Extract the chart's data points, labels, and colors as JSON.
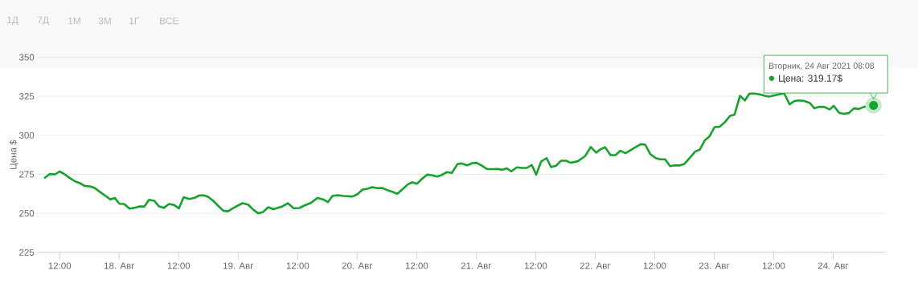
{
  "chart_data": {
    "type": "line",
    "ylabel": "Цена $",
    "xlim": [
      "2021-08-17T07:28",
      "2021-08-24T10:30"
    ],
    "ylim": [
      225,
      350
    ],
    "yticks": [
      225,
      250,
      275,
      300,
      325,
      350
    ],
    "xticks": [
      {
        "value": "2021-08-17T12:00",
        "label": "12:00"
      },
      {
        "value": "2021-08-18",
        "label": "18. Авг"
      },
      {
        "value": "2021-08-18T12:00",
        "label": "12:00"
      },
      {
        "value": "2021-08-19",
        "label": "19. Авг"
      },
      {
        "value": "2021-08-19T12:00",
        "label": "12:00"
      },
      {
        "value": "2021-08-20",
        "label": "20. Авг"
      },
      {
        "value": "2021-08-20T12:00",
        "label": "12:00"
      },
      {
        "value": "2021-08-21",
        "label": "21. Авг"
      },
      {
        "value": "2021-08-21T12:00",
        "label": "12:00"
      },
      {
        "value": "2021-08-22",
        "label": "22. Авг"
      },
      {
        "value": "2021-08-22T12:00",
        "label": "12:00"
      },
      {
        "value": "2021-08-23",
        "label": "23. Авг"
      },
      {
        "value": "2021-08-23T12:00",
        "label": "12:00"
      },
      {
        "value": "2021-08-24",
        "label": "24. Авг"
      }
    ],
    "grid": "y",
    "marker": "none",
    "line_style": "solid",
    "annotations": [
      "1Д",
      "7Д",
      "1М",
      "3М",
      "1Г",
      "ВСЕ",
      "Вторник, 24 Авг 2021 08:08",
      "Цена: 319.17$"
    ],
    "series": [
      {
        "color": "#17a22b",
        "x": [
          "2021-08-17T09:02",
          "2021-08-17T10:00",
          "2021-08-17T11:06",
          "2021-08-17T12:00",
          "2021-08-17T13:00",
          "2021-08-17T14:03",
          "2021-08-17T15:06",
          "2021-08-17T16:12",
          "2021-08-17T17:00",
          "2021-08-17T18:06",
          "2021-08-17T19:00",
          "2021-08-17T20:00",
          "2021-08-17T21:06",
          "2021-08-17T22:12",
          "2021-08-17T23:06",
          "2021-08-18T00:03",
          "2021-08-18T01:00",
          "2021-08-18T02:06",
          "2021-08-18T03:18",
          "2021-08-18T04:06",
          "2021-08-18T05:06",
          "2021-08-18T06:00",
          "2021-08-18T07:06",
          "2021-08-18T08:03",
          "2021-08-18T09:00",
          "2021-08-18T10:03",
          "2021-08-18T11:06",
          "2021-08-18T12:03",
          "2021-08-18T13:00",
          "2021-08-18T14:06",
          "2021-08-18T15:06",
          "2021-08-18T16:12",
          "2021-08-18T17:06",
          "2021-08-18T18:00",
          "2021-08-18T19:00",
          "2021-08-18T20:03",
          "2021-08-18T21:00",
          "2021-08-18T21:57",
          "2021-08-18T23:00",
          "2021-08-19T00:00",
          "2021-08-19T00:54",
          "2021-08-19T02:00",
          "2021-08-19T03:06",
          "2021-08-19T04:03",
          "2021-08-19T05:00",
          "2021-08-19T06:03",
          "2021-08-19T07:06",
          "2021-08-19T08:48",
          "2021-08-19T10:00",
          "2021-08-19T11:12",
          "2021-08-19T12:18",
          "2021-08-19T13:24",
          "2021-08-19T14:42",
          "2021-08-19T16:00",
          "2021-08-19T17:06",
          "2021-08-19T18:06",
          "2021-08-19T19:00",
          "2021-08-19T20:06",
          "2021-08-19T21:12",
          "2021-08-19T23:06",
          "2021-08-20T00:03",
          "2021-08-20T01:06",
          "2021-08-20T02:06",
          "2021-08-20T03:00",
          "2021-08-20T04:06",
          "2021-08-20T05:00",
          "2021-08-20T06:06",
          "2021-08-20T07:12",
          "2021-08-20T08:06",
          "2021-08-20T09:18",
          "2021-08-20T10:12",
          "2021-08-20T11:06",
          "2021-08-20T12:06",
          "2021-08-20T13:00",
          "2021-08-20T14:06",
          "2021-08-20T15:00",
          "2021-08-20T16:06",
          "2021-08-20T17:00",
          "2021-08-20T18:06",
          "2021-08-20T19:06",
          "2021-08-20T20:12",
          "2021-08-20T21:06",
          "2021-08-20T22:12",
          "2021-08-20T23:15",
          "2021-08-21T00:06",
          "2021-08-21T01:00",
          "2021-08-21T02:12",
          "2021-08-21T03:12",
          "2021-08-21T04:18",
          "2021-08-21T05:18",
          "2021-08-21T06:12",
          "2021-08-21T07:06",
          "2021-08-21T08:12",
          "2021-08-21T09:06",
          "2021-08-21T10:12",
          "2021-08-21T11:12",
          "2021-08-21T12:06",
          "2021-08-21T13:06",
          "2021-08-21T14:12",
          "2021-08-21T15:06",
          "2021-08-21T16:06",
          "2021-08-21T17:06",
          "2021-08-21T18:06",
          "2021-08-21T19:06",
          "2021-08-21T20:30",
          "2021-08-21T22:00",
          "2021-08-21T23:06",
          "2021-08-22T00:12",
          "2021-08-22T01:06",
          "2021-08-22T02:00",
          "2021-08-22T03:06",
          "2021-08-22T04:06",
          "2021-08-22T05:06",
          "2021-08-22T06:06",
          "2021-08-22T07:12",
          "2021-08-22T08:12",
          "2021-08-22T09:12",
          "2021-08-22T10:06",
          "2021-08-22T11:06",
          "2021-08-22T12:12",
          "2021-08-22T13:06",
          "2021-08-22T14:06",
          "2021-08-22T15:06",
          "2021-08-22T16:00",
          "2021-08-22T17:00",
          "2021-08-22T18:00",
          "2021-08-22T19:12",
          "2021-08-22T20:12",
          "2021-08-22T21:06",
          "2021-08-22T22:06",
          "2021-08-22T23:00",
          "2021-08-23T00:06",
          "2021-08-23T01:06",
          "2021-08-23T02:06",
          "2021-08-23T03:12",
          "2021-08-23T04:06",
          "2021-08-23T05:12",
          "2021-08-23T06:12",
          "2021-08-23T07:06",
          "2021-08-23T08:12",
          "2021-08-23T09:12",
          "2021-08-23T10:12",
          "2021-08-23T11:06",
          "2021-08-23T12:12",
          "2021-08-23T13:18",
          "2021-08-23T14:06",
          "2021-08-23T15:12",
          "2021-08-23T16:12",
          "2021-08-23T17:06",
          "2021-08-23T18:12",
          "2021-08-23T19:18",
          "2021-08-23T20:12",
          "2021-08-23T21:06",
          "2021-08-23T22:12",
          "2021-08-23T23:18",
          "2021-08-24T00:06",
          "2021-08-24T01:12",
          "2021-08-24T02:06",
          "2021-08-24T03:06",
          "2021-08-24T04:12",
          "2021-08-24T05:06",
          "2021-08-24T06:12",
          "2021-08-24T07:06",
          "2021-08-24T08:08"
        ],
        "values": [
          272.8,
          275.2,
          275,
          276.9,
          275,
          272.6,
          270.5,
          269.2,
          267.6,
          267.3,
          266.4,
          264,
          261.5,
          259,
          259.9,
          256.1,
          256,
          253,
          253.7,
          254.4,
          254.4,
          258.7,
          258,
          254.4,
          253.5,
          256,
          255.3,
          253.2,
          260.3,
          259.2,
          259.8,
          261.5,
          261.5,
          260.5,
          257.9,
          254.6,
          251.7,
          251.3,
          253.4,
          255.1,
          256.5,
          255.6,
          252.2,
          250,
          250.8,
          253.9,
          252.7,
          254.3,
          256.5,
          253.3,
          253.4,
          255.1,
          256.8,
          259.9,
          259,
          257.2,
          261.1,
          261.6,
          261.1,
          260.8,
          262.3,
          265.2,
          265.8,
          266.8,
          266.1,
          266.3,
          264.9,
          263.7,
          262.5,
          265.9,
          268.5,
          269.9,
          269,
          271.9,
          274.8,
          274.5,
          273.6,
          274.5,
          276.4,
          275.9,
          281.5,
          282,
          280.8,
          282.2,
          282.4,
          280.8,
          278.4,
          278.3,
          278.4,
          277.9,
          278.8,
          276.9,
          279.5,
          279.1,
          279.1,
          281,
          274.8,
          283.2,
          285.4,
          279.6,
          280.5,
          283.7,
          283.7,
          282.4,
          283.4,
          286.8,
          292.5,
          288.9,
          291.1,
          292.3,
          287.3,
          287.3,
          290.1,
          288.5,
          290.6,
          292.5,
          294.3,
          294,
          288,
          285.4,
          284.6,
          284.6,
          280.3,
          280.8,
          280.7,
          281.7,
          286,
          289.7,
          290.8,
          296.8,
          299.1,
          305.3,
          305.5,
          308.2,
          312.5,
          313.2,
          325.3,
          322.3,
          326.7,
          326.7,
          326.2,
          325.3,
          324.8,
          null,
          null,
          327,
          319.9,
          322,
          322.4,
          322,
          320.7,
          317.3,
          318.2,
          318.2,
          316.5,
          318.9,
          314.4,
          313.8,
          314.2,
          317.3,
          316.8,
          318.2,
          318.7,
          319.17
        ]
      }
    ]
  }
}
